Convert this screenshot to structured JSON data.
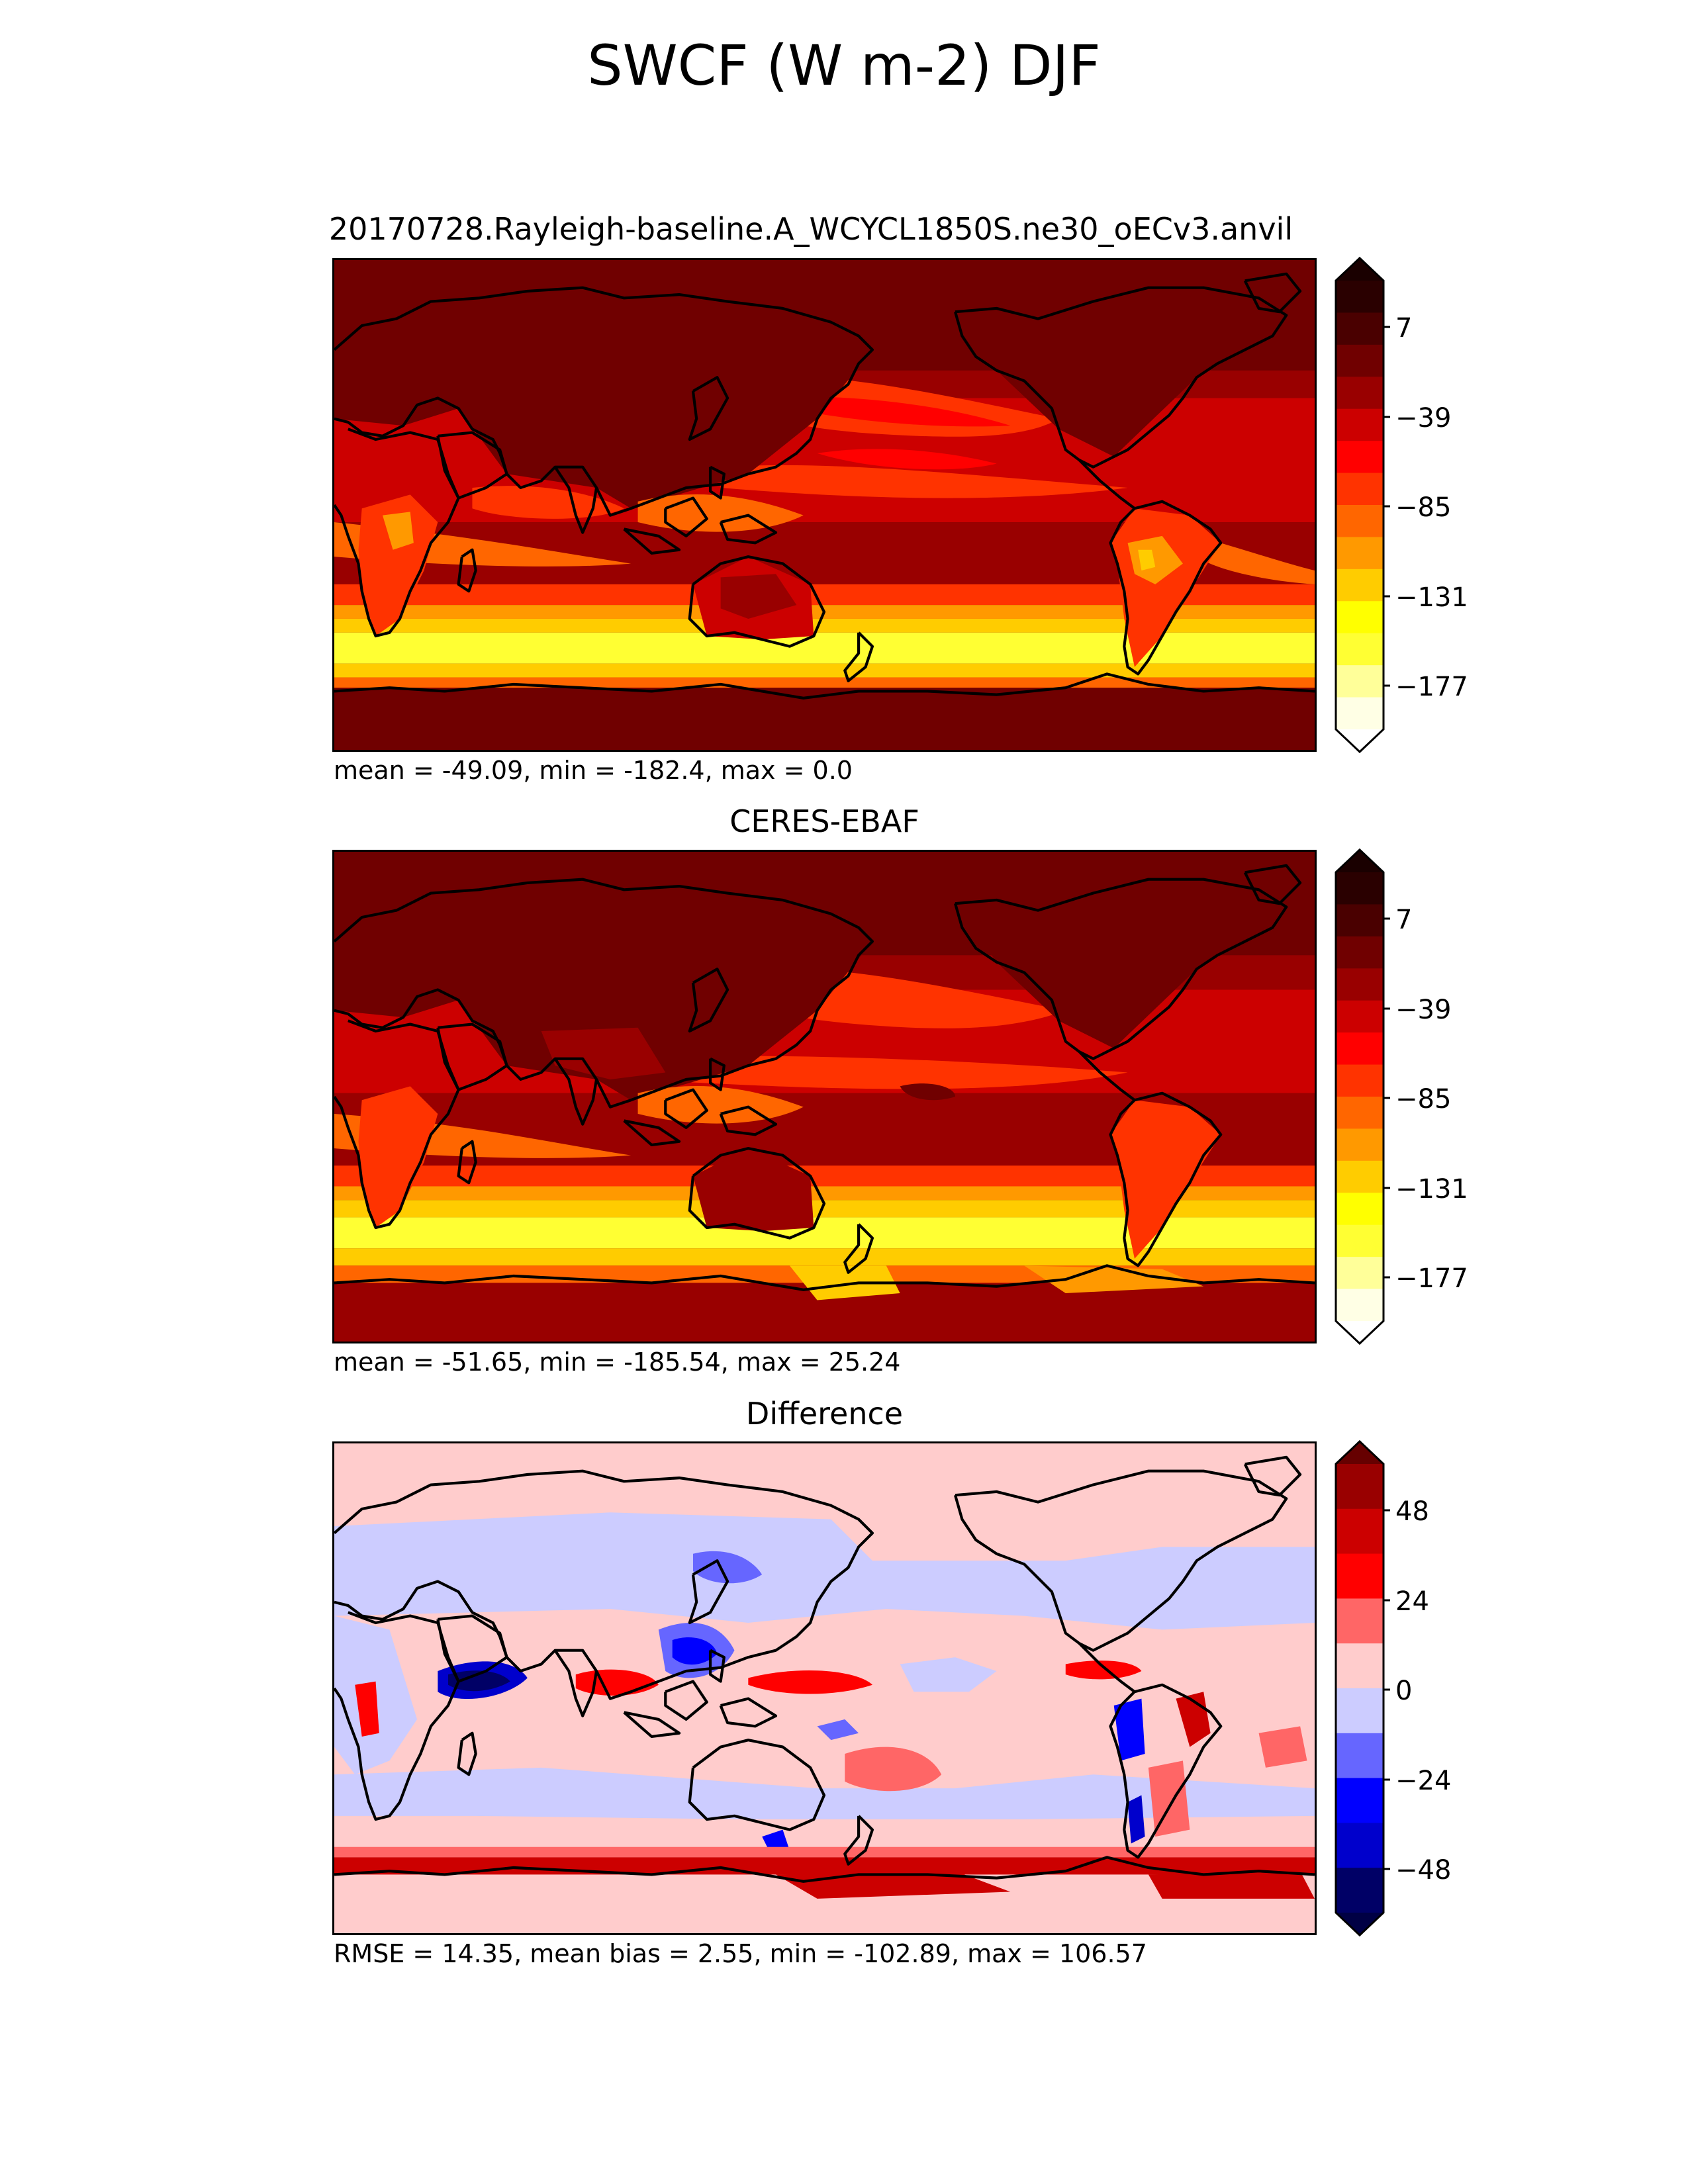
{
  "figure": {
    "title": "SWCF (W m-2) DJF"
  },
  "panels": [
    {
      "id": "model",
      "title": "20170728.Rayleigh-baseline.A_WCYCL1850S.ne30_oECv3.anvil",
      "footer": "mean = -49.09, min = -182.4, max = 0.0",
      "colormap": "hot (yellow-red-black)",
      "colorbar": {
        "colors": [
          "#ffffe5",
          "#ffff99",
          "#ffff33",
          "#ffff00",
          "#ffcc00",
          "#ff9900",
          "#ff6600",
          "#ff3300",
          "#ff0000",
          "#cc0000",
          "#990000",
          "#700000",
          "#4a0000",
          "#2a0000"
        ],
        "under_color": "#ffffff",
        "over_color": "#1a0000",
        "ticks": [
          "7",
          "−39",
          "−85",
          "−131",
          "−177"
        ]
      }
    },
    {
      "id": "obs",
      "title": "CERES-EBAF",
      "footer": "mean = -51.65, min = -185.54, max = 25.24",
      "colormap": "hot (yellow-red-black)",
      "colorbar": {
        "colors": [
          "#ffffe5",
          "#ffff99",
          "#ffff33",
          "#ffff00",
          "#ffcc00",
          "#ff9900",
          "#ff6600",
          "#ff3300",
          "#ff0000",
          "#cc0000",
          "#990000",
          "#700000",
          "#4a0000",
          "#2a0000"
        ],
        "under_color": "#ffffff",
        "over_color": "#1a0000",
        "ticks": [
          "7",
          "−39",
          "−85",
          "−131",
          "−177"
        ]
      }
    },
    {
      "id": "diff",
      "title": "Difference",
      "footer": "RMSE = 14.35, mean bias = 2.55, min = -102.89, max = 106.57",
      "colormap": "seismic (blue-white-red)",
      "colorbar": {
        "colors": [
          "#000066",
          "#0000cc",
          "#0000ff",
          "#6666ff",
          "#ccccff",
          "#ffcccc",
          "#ff6666",
          "#ff0000",
          "#cc0000",
          "#990000"
        ],
        "under_color": "#000044",
        "over_color": "#660000",
        "ticks": [
          "48",
          "24",
          "0",
          "−24",
          "−48"
        ]
      }
    }
  ]
}
